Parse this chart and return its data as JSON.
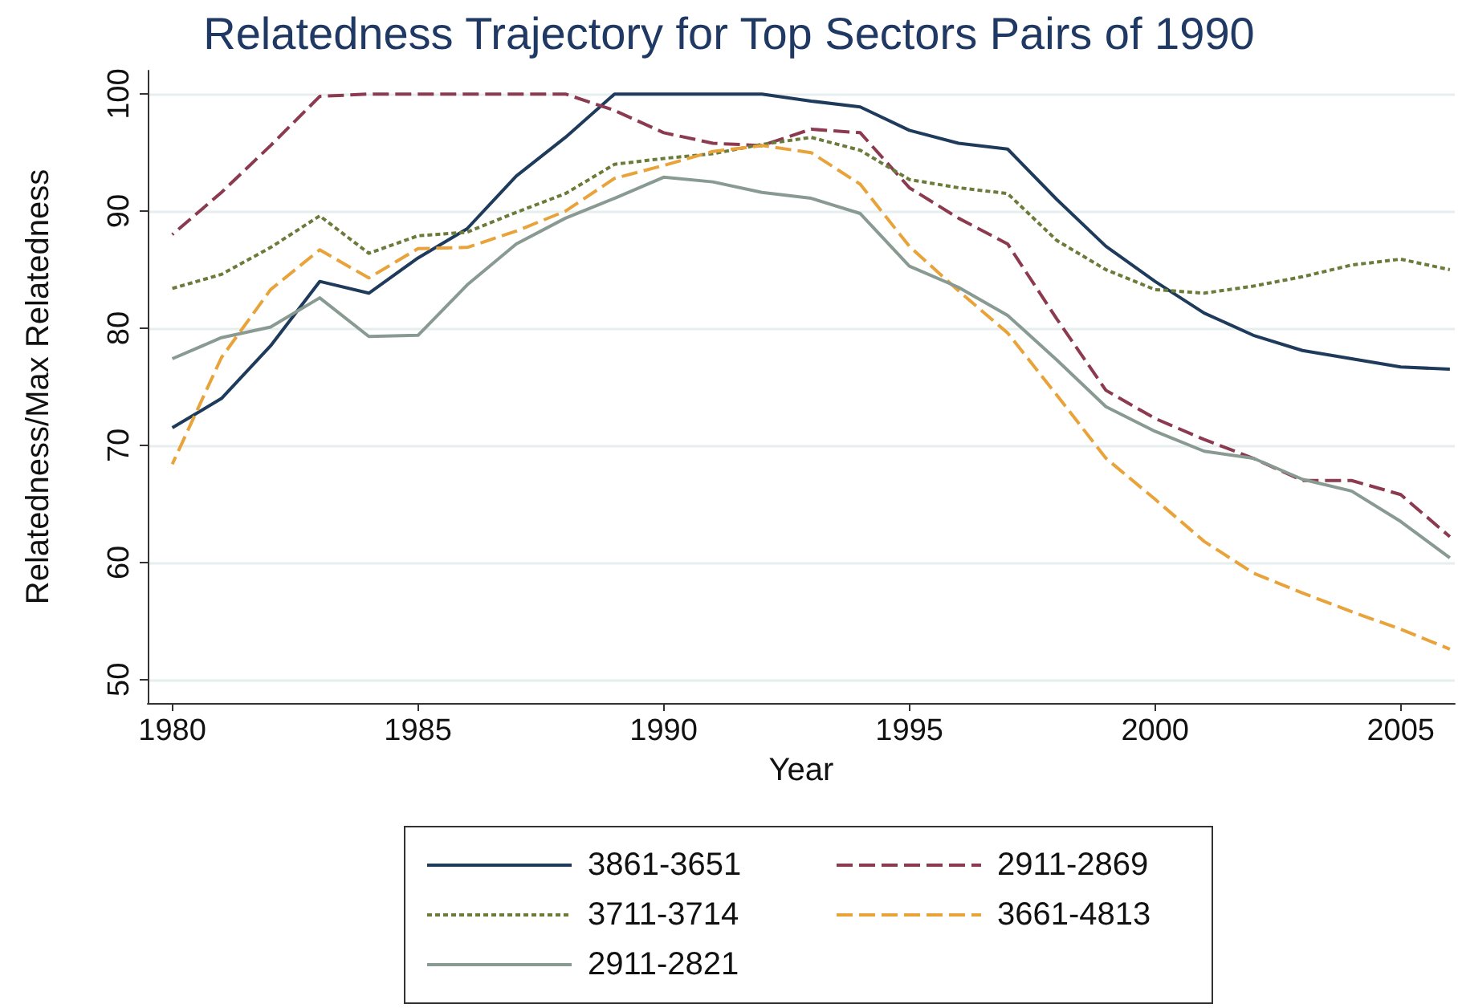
{
  "chart_data": {
    "type": "line",
    "title": "Relatedness Trajectory for Top Sectors Pairs of 1990",
    "xlabel": "Year",
    "ylabel": "Relatedness/Max Relatedness",
    "x": [
      1980,
      1981,
      1982,
      1983,
      1984,
      1985,
      1986,
      1987,
      1988,
      1989,
      1990,
      1991,
      1992,
      1993,
      1994,
      1995,
      1996,
      1997,
      1998,
      1999,
      2000,
      2001,
      2002,
      2003,
      2004,
      2005,
      2006
    ],
    "series": [
      {
        "name": "3861-3651",
        "color": "#1f3b5c",
        "line_style": "solid",
        "values": [
          71.5,
          74,
          78.5,
          84,
          83,
          86,
          88.5,
          93,
          96.3,
          100,
          100,
          100,
          100,
          99.4,
          98.9,
          96.9,
          95.8,
          95.3,
          91,
          87,
          84,
          81.3,
          79.4,
          78.1,
          77.4,
          76.7,
          76.5
        ]
      },
      {
        "name": "2911-2869",
        "color": "#8c3a4f",
        "line_style": "dashed",
        "values": [
          88,
          91.6,
          95.6,
          99.8,
          100,
          100,
          100,
          100,
          100,
          98.6,
          96.7,
          95.8,
          95.6,
          97,
          96.7,
          92,
          89.4,
          87.2,
          80.8,
          74.7,
          72.3,
          70.5,
          68.9,
          67,
          67,
          65.8,
          62.2
        ]
      },
      {
        "name": "3711-3714",
        "color": "#6b7b3a",
        "line_style": "dotted",
        "values": [
          83.4,
          84.6,
          86.9,
          89.6,
          86.4,
          87.9,
          88.2,
          89.9,
          91.5,
          94,
          94.5,
          94.9,
          95.7,
          96.3,
          95.2,
          92.7,
          92,
          91.5,
          87.5,
          85,
          83.3,
          83,
          83.6,
          84.4,
          85.4,
          85.9,
          85
        ]
      },
      {
        "name": "3661-4813",
        "color": "#e8a33a",
        "line_style": "dashed",
        "values": [
          68.4,
          77.5,
          83.3,
          86.7,
          84.3,
          86.8,
          86.9,
          88.3,
          90,
          92.8,
          93.9,
          95.1,
          95.6,
          95,
          92.3,
          87,
          83.2,
          79.6,
          74.3,
          68.9,
          65.4,
          61.8,
          59.1,
          57.4,
          55.8,
          54.3,
          52.6
        ]
      },
      {
        "name": "2911-2821",
        "color": "#889a92",
        "line_style": "solid",
        "values": [
          77.4,
          79.2,
          80.1,
          82.6,
          79.3,
          79.4,
          83.7,
          87.2,
          89.4,
          91.1,
          92.9,
          92.5,
          91.6,
          91.1,
          89.8,
          85.3,
          83.5,
          81.1,
          77.3,
          73.3,
          71.2,
          69.5,
          68.9,
          67.1,
          66.1,
          63.5,
          60.4
        ]
      }
    ],
    "xlim": [
      1979.5,
      2006.1
    ],
    "xticks": [
      1980,
      1985,
      1990,
      1995,
      2000,
      2005
    ],
    "ylim": [
      48,
      102
    ],
    "yticks": [
      50,
      60,
      70,
      80,
      90,
      100
    ],
    "grid": "y",
    "legend": "bottom",
    "marker": "none"
  }
}
